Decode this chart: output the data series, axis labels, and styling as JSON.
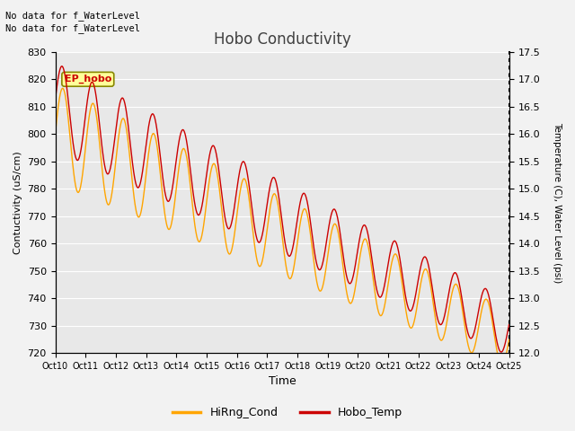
{
  "title": "Hobo Conductivity",
  "xlabel": "Time",
  "ylabel_left": "Contuctivity (uS/cm)",
  "ylabel_right": "Temperature (C), Water Level (psi)",
  "text_no_data1": "No data for f_WaterLevel",
  "text_no_data2": "No data for f_WaterLevel",
  "ep_hobo_label": "EP_hobo",
  "ylim_left": [
    720,
    830
  ],
  "ylim_right": [
    12.0,
    17.5
  ],
  "legend_entries": [
    "HiRng_Cond",
    "Hobo_Temp"
  ],
  "orange_color": "#FFA500",
  "red_color": "#CC0000",
  "bg_color": "#E8E8E8",
  "fig_bg_color": "#F2F2F2",
  "xtick_labels": [
    "Oct 10",
    "Oct 11",
    "Oct 12",
    "Oct 13",
    "Oct 14",
    "Oct 15",
    "Oct 16",
    "Oct 17",
    "Oct 18",
    "Oct 19",
    "Oct 20",
    "Oct 21",
    "Oct 22",
    "Oct 23",
    "Oct 24",
    "Oct 25"
  ],
  "left_yticks": [
    720,
    730,
    740,
    750,
    760,
    770,
    780,
    790,
    800,
    810,
    820,
    830
  ],
  "right_yticks": [
    12.0,
    12.5,
    13.0,
    13.5,
    14.0,
    14.5,
    15.0,
    15.5,
    16.0,
    16.5,
    17.0,
    17.5
  ]
}
